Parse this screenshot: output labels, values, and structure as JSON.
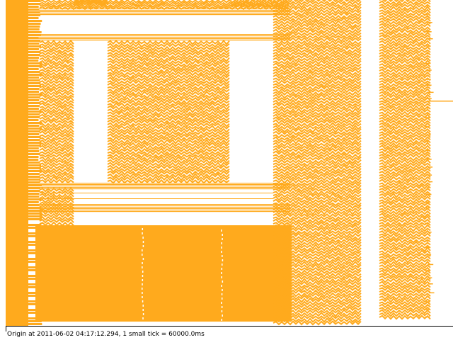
{
  "viewer": {
    "caption": "Origin at 2011-06-02 04:17:12.294, 1 small tick = 60000.0ms"
  },
  "style": {
    "mark_color": "#ffaa1d",
    "background": "#ffffff",
    "axis_color": "#000000"
  }
}
